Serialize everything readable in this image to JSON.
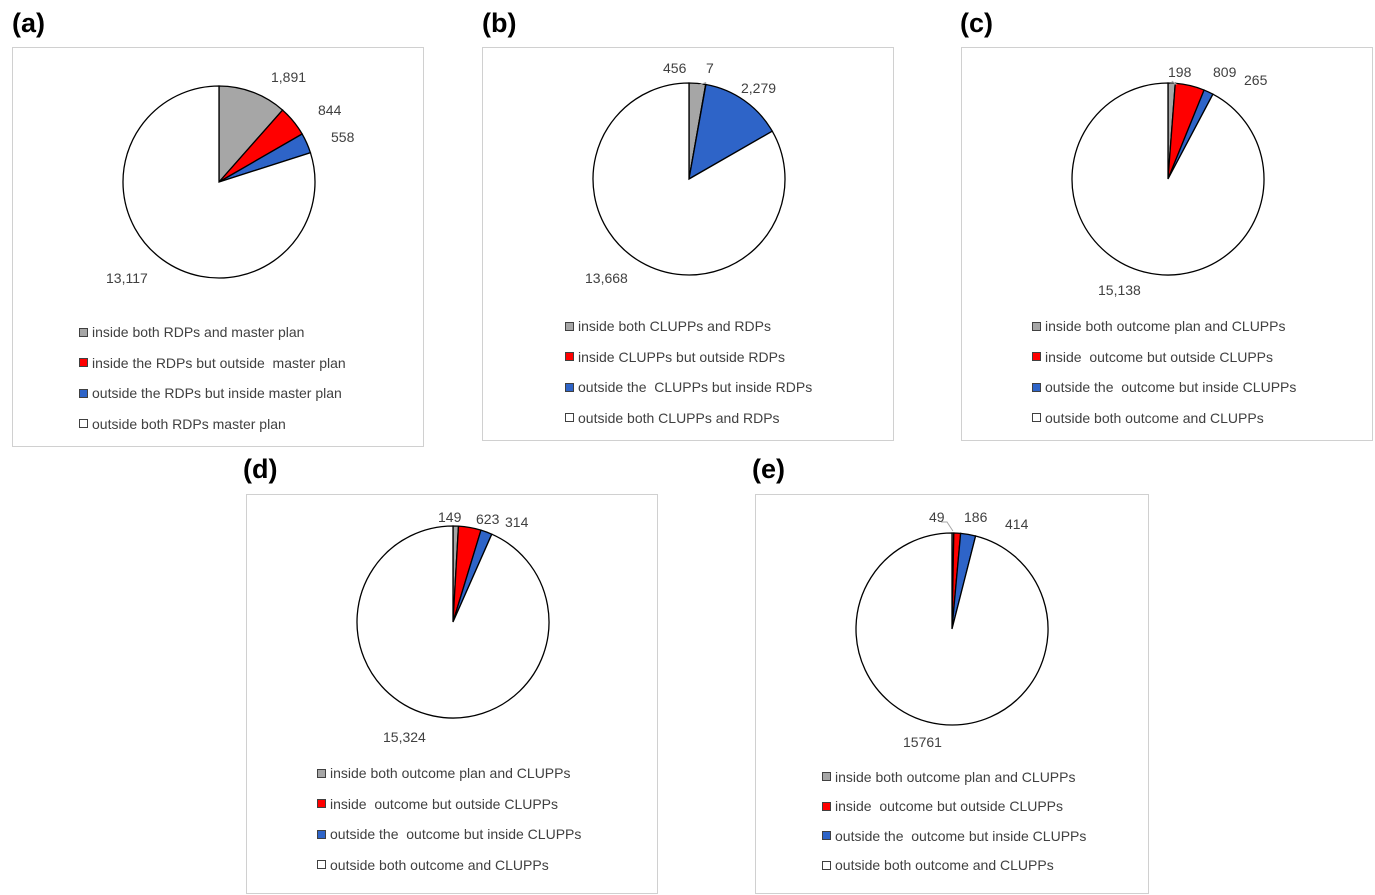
{
  "chart_data": [
    {
      "panel": "(a)",
      "type": "pie",
      "slices": [
        {
          "label": "inside both RDPs and master plan",
          "value": 1891,
          "value_text": "1,891",
          "color": "#a6a6a6"
        },
        {
          "label": "inside the RDPs but outside  master plan",
          "value": 844,
          "value_text": "844",
          "color": "#ff0000"
        },
        {
          "label": "outside the RDPs but inside master plan",
          "value": 558,
          "value_text": "558",
          "color": "#2e64c8"
        },
        {
          "label": "outside both RDPs master plan",
          "value": 13117,
          "value_text": "13,117",
          "color": "#ffffff"
        }
      ]
    },
    {
      "panel": "(b)",
      "type": "pie",
      "slices": [
        {
          "label": "inside both CLUPPs and RDPs",
          "value": 456,
          "value_text": "456",
          "color": "#a6a6a6"
        },
        {
          "label": "inside CLUPPs but outside RDPs",
          "value": 7,
          "value_text": "7",
          "color": "#ff0000"
        },
        {
          "label": "outside the  CLUPPs but inside RDPs",
          "value": 2279,
          "value_text": "2,279",
          "color": "#2e64c8"
        },
        {
          "label": "outside both CLUPPs and RDPs",
          "value": 13668,
          "value_text": "13,668",
          "color": "#ffffff"
        }
      ]
    },
    {
      "panel": "(c)",
      "type": "pie",
      "slices": [
        {
          "label": "inside both outcome plan and CLUPPs",
          "value": 198,
          "value_text": "198",
          "color": "#a6a6a6"
        },
        {
          "label": "inside  outcome but outside CLUPPs",
          "value": 809,
          "value_text": "809",
          "color": "#ff0000"
        },
        {
          "label": "outside the  outcome but inside CLUPPs",
          "value": 265,
          "value_text": "265",
          "color": "#2e64c8"
        },
        {
          "label": "outside both outcome and CLUPPs",
          "value": 15138,
          "value_text": "15,138",
          "color": "#ffffff"
        }
      ]
    },
    {
      "panel": "(d)",
      "type": "pie",
      "slices": [
        {
          "label": "inside both outcome plan and CLUPPs",
          "value": 149,
          "value_text": "149",
          "color": "#a6a6a6"
        },
        {
          "label": "inside  outcome but outside CLUPPs",
          "value": 623,
          "value_text": "623",
          "color": "#ff0000"
        },
        {
          "label": "outside the  outcome but inside CLUPPs",
          "value": 314,
          "value_text": "314",
          "color": "#2e64c8"
        },
        {
          "label": "outside both outcome and CLUPPs",
          "value": 15324,
          "value_text": "15,324",
          "color": "#ffffff"
        }
      ]
    },
    {
      "panel": "(e)",
      "type": "pie",
      "slices": [
        {
          "label": "inside both outcome plan and CLUPPs",
          "value": 49,
          "value_text": "49",
          "color": "#a6a6a6"
        },
        {
          "label": "inside  outcome but outside CLUPPs",
          "value": 186,
          "value_text": "186",
          "color": "#ff0000"
        },
        {
          "label": "outside the  outcome but inside CLUPPs",
          "value": 414,
          "value_text": "414",
          "color": "#2e64c8"
        },
        {
          "label": "outside both outcome and CLUPPs",
          "value": 15761,
          "value_text": "15761",
          "color": "#ffffff"
        }
      ]
    }
  ]
}
